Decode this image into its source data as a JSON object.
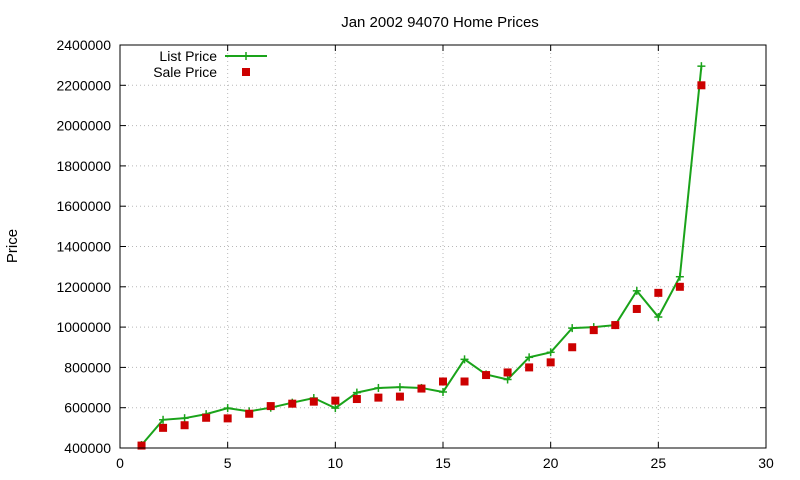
{
  "chart_data": {
    "type": "line",
    "title": "Jan 2002 94070 Home Prices",
    "xlabel": "",
    "ylabel": "Price",
    "xlim": [
      0,
      30
    ],
    "ylim": [
      400000,
      2400000
    ],
    "xticks": [
      0,
      5,
      10,
      15,
      20,
      25,
      30
    ],
    "yticks": [
      400000,
      600000,
      800000,
      1000000,
      1200000,
      1400000,
      1600000,
      1800000,
      2000000,
      2200000,
      2400000
    ],
    "xtick_labels": [
      "0",
      "5",
      "10",
      "15",
      "20",
      "25",
      "30"
    ],
    "ytick_labels": [
      "400000",
      "600000",
      "800000",
      "1000000",
      "1200000",
      "1400000",
      "1600000",
      "1800000",
      "2000000",
      "2200000",
      "2400000"
    ],
    "grid": true,
    "legend": "top-left",
    "series": [
      {
        "name": "List Price",
        "style": "line+plus",
        "color": "#1aa31a",
        "x": [
          1,
          2,
          3,
          4,
          5,
          6,
          7,
          8,
          9,
          10,
          11,
          12,
          13,
          14,
          15,
          16,
          17,
          18,
          19,
          20,
          21,
          22,
          23,
          24,
          25,
          26,
          27
        ],
        "values": [
          415000,
          540000,
          548000,
          568000,
          598000,
          582000,
          600000,
          625000,
          648000,
          598000,
          675000,
          698000,
          702000,
          698000,
          678000,
          840000,
          765000,
          740000,
          850000,
          875000,
          995000,
          1000000,
          1010000,
          1180000,
          1050000,
          1250000,
          2295000
        ]
      },
      {
        "name": "Sale Price",
        "style": "square-points",
        "color": "#cc0000",
        "x": [
          1,
          2,
          3,
          4,
          5,
          6,
          7,
          8,
          9,
          10,
          11,
          12,
          13,
          14,
          15,
          16,
          17,
          18,
          19,
          20,
          21,
          22,
          23,
          24,
          25,
          26,
          27
        ],
        "values": [
          412000,
          500000,
          513000,
          550000,
          547000,
          570000,
          608000,
          620000,
          630000,
          635000,
          643000,
          650000,
          655000,
          695000,
          730000,
          730000,
          762000,
          775000,
          800000,
          825000,
          900000,
          985000,
          1010000,
          1090000,
          1170000,
          1200000,
          2200000
        ]
      }
    ]
  }
}
